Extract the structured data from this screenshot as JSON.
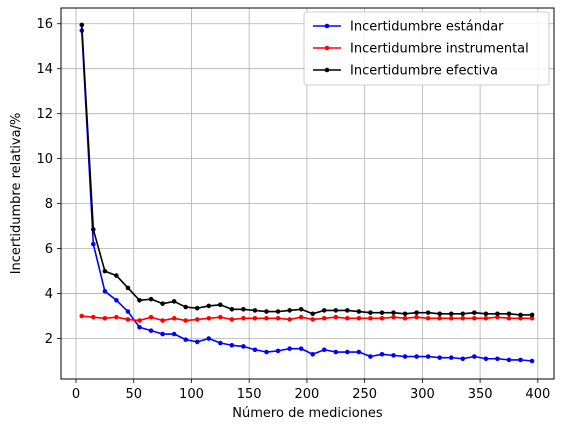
{
  "chart_data": {
    "type": "line",
    "title": "",
    "xlabel": "Número de mediciones",
    "ylabel": "Incertidumbre relativa/%",
    "xlim": [
      -13,
      414
    ],
    "ylim": [
      0.2,
      16.7
    ],
    "xticks": [
      0,
      50,
      100,
      150,
      200,
      250,
      300,
      350,
      400
    ],
    "yticks": [
      2,
      4,
      6,
      8,
      10,
      12,
      14,
      16
    ],
    "grid": true,
    "legend_position": "top-right",
    "x": [
      5,
      15,
      25,
      35,
      45,
      55,
      65,
      75,
      85,
      95,
      105,
      115,
      125,
      135,
      145,
      155,
      165,
      175,
      185,
      195,
      205,
      215,
      225,
      235,
      245,
      255,
      265,
      275,
      285,
      295,
      305,
      315,
      325,
      335,
      345,
      355,
      365,
      375,
      385,
      395
    ],
    "series": [
      {
        "name": "Incertidumbre estándar",
        "color": "#0000ff",
        "values": [
          15.7,
          6.2,
          4.1,
          3.7,
          3.2,
          2.5,
          2.35,
          2.2,
          2.2,
          1.95,
          1.85,
          2.0,
          1.8,
          1.7,
          1.65,
          1.5,
          1.4,
          1.45,
          1.55,
          1.55,
          1.3,
          1.5,
          1.4,
          1.4,
          1.4,
          1.2,
          1.3,
          1.25,
          1.2,
          1.2,
          1.2,
          1.15,
          1.15,
          1.1,
          1.2,
          1.1,
          1.1,
          1.05,
          1.05,
          1.0
        ]
      },
      {
        "name": "Incertidumbre instrumental",
        "color": "#ff0000",
        "values": [
          3.0,
          2.95,
          2.9,
          2.95,
          2.85,
          2.8,
          2.95,
          2.8,
          2.9,
          2.8,
          2.85,
          2.9,
          2.95,
          2.85,
          2.9,
          2.9,
          2.9,
          2.9,
          2.85,
          2.95,
          2.85,
          2.9,
          2.95,
          2.9,
          2.9,
          2.9,
          2.9,
          2.95,
          2.9,
          2.95,
          2.9,
          2.9,
          2.9,
          2.9,
          2.9,
          2.9,
          2.95,
          2.9,
          2.9,
          2.9
        ]
      },
      {
        "name": "Incertidumbre efectiva",
        "color": "#000000",
        "values": [
          15.95,
          6.85,
          5.0,
          4.8,
          4.25,
          3.7,
          3.75,
          3.55,
          3.65,
          3.4,
          3.35,
          3.45,
          3.5,
          3.3,
          3.3,
          3.25,
          3.2,
          3.2,
          3.25,
          3.3,
          3.1,
          3.25,
          3.25,
          3.25,
          3.2,
          3.15,
          3.15,
          3.15,
          3.1,
          3.15,
          3.15,
          3.1,
          3.1,
          3.1,
          3.15,
          3.1,
          3.1,
          3.1,
          3.05,
          3.05
        ]
      }
    ]
  }
}
